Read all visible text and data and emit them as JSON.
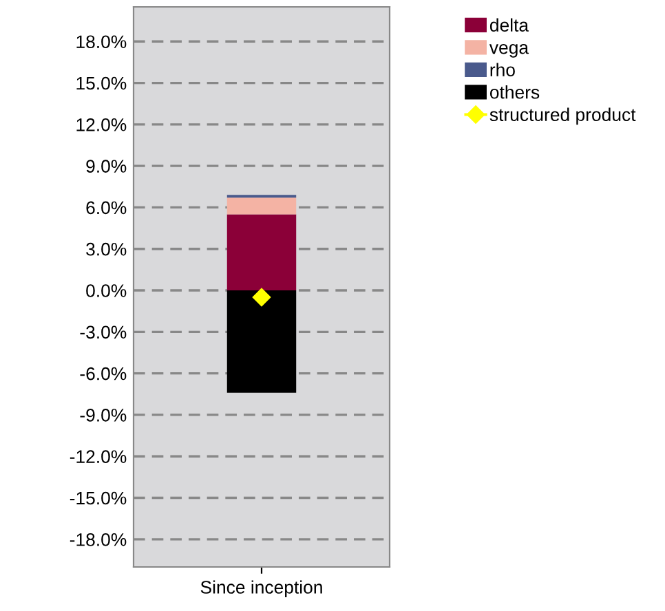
{
  "chart_data": {
    "type": "bar",
    "stacked": true,
    "categories": [
      "Since inception"
    ],
    "series": [
      {
        "name": "delta",
        "color": "#8b0038",
        "values": [
          5.5
        ]
      },
      {
        "name": "vega",
        "color": "#f4b3a4",
        "values": [
          1.2
        ]
      },
      {
        "name": "rho",
        "color": "#4a5a8c",
        "values": [
          0.2
        ]
      },
      {
        "name": "others",
        "color": "#000000",
        "values": [
          -7.4
        ]
      },
      {
        "name": "structured product",
        "type": "scatter",
        "color": "#ffff00",
        "marker": "diamond",
        "values": [
          -0.5
        ]
      }
    ],
    "ylim": [
      -20,
      20.5
    ],
    "yticks": [
      {
        "value": -18,
        "label": "-18.0%"
      },
      {
        "value": -15,
        "label": "-15.0%"
      },
      {
        "value": -12,
        "label": "-12.0%"
      },
      {
        "value": -9,
        "label": "-9.0%"
      },
      {
        "value": -6,
        "label": "-6.0%"
      },
      {
        "value": -3,
        "label": "-3.0%"
      },
      {
        "value": 0,
        "label": "0.0%"
      },
      {
        "value": 3,
        "label": "3.0%"
      },
      {
        "value": 6,
        "label": "6.0%"
      },
      {
        "value": 9,
        "label": "9.0%"
      },
      {
        "value": 12,
        "label": "12.0%"
      },
      {
        "value": 15,
        "label": "15.0%"
      },
      {
        "value": 18,
        "label": "18.0%"
      }
    ],
    "grid": "y",
    "legend": "top right"
  }
}
